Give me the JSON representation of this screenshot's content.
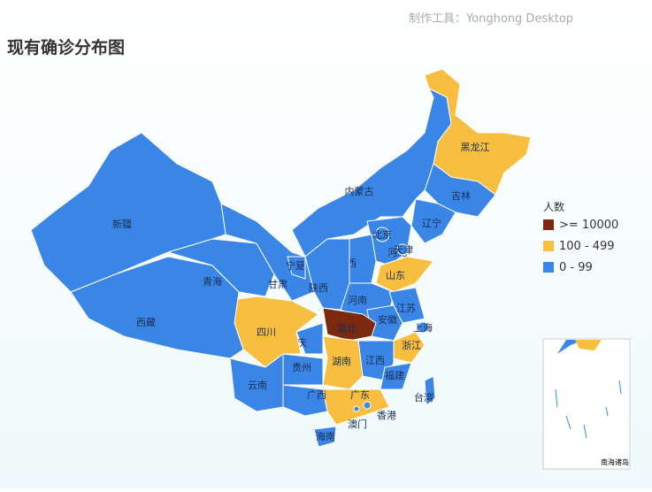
{
  "watermark": "制作工具：Yonghong Desktop",
  "title": "现有确诊分布图",
  "legend": {
    "title": "人数",
    "items": [
      {
        "label": ">= 10000",
        "color": "#7b2a10"
      },
      {
        "label": "100 - 499",
        "color": "#f8be3f"
      },
      {
        "label": "0 - 99",
        "color": "#3a86e6"
      }
    ]
  },
  "regions": [
    {
      "name": "黑龙江",
      "class": 1
    },
    {
      "name": "吉林",
      "class": 2
    },
    {
      "name": "辽宁",
      "class": 2
    },
    {
      "name": "内蒙古",
      "class": 2
    },
    {
      "name": "河北",
      "class": 2
    },
    {
      "name": "北京",
      "class": 2
    },
    {
      "name": "天津",
      "class": 2
    },
    {
      "name": "山西",
      "class": 2
    },
    {
      "name": "山东",
      "class": 1
    },
    {
      "name": "河南",
      "class": 2
    },
    {
      "name": "江苏",
      "class": 2
    },
    {
      "name": "上海",
      "class": 2
    },
    {
      "name": "安徽",
      "class": 2
    },
    {
      "name": "湖北",
      "class": 0
    },
    {
      "name": "浙江",
      "class": 1
    },
    {
      "name": "江西",
      "class": 2
    },
    {
      "name": "福建",
      "class": 2
    },
    {
      "name": "湖南",
      "class": 1
    },
    {
      "name": "广东",
      "class": 1
    },
    {
      "name": "香港",
      "class": 2
    },
    {
      "name": "澳门",
      "class": 2
    },
    {
      "name": "广西",
      "class": 2
    },
    {
      "name": "海南",
      "class": 2
    },
    {
      "name": "台湾",
      "class": 2
    },
    {
      "name": "贵州",
      "class": 2
    },
    {
      "name": "重庆",
      "class": 2
    },
    {
      "name": "四川",
      "class": 1
    },
    {
      "name": "云南",
      "class": 2
    },
    {
      "name": "西藏",
      "class": 2
    },
    {
      "name": "青海",
      "class": 2
    },
    {
      "name": "甘肃",
      "class": 2
    },
    {
      "name": "宁夏",
      "class": 2
    },
    {
      "name": "陕西",
      "class": 2
    },
    {
      "name": "新疆",
      "class": 2
    }
  ],
  "inset_label": "南海诸岛"
}
